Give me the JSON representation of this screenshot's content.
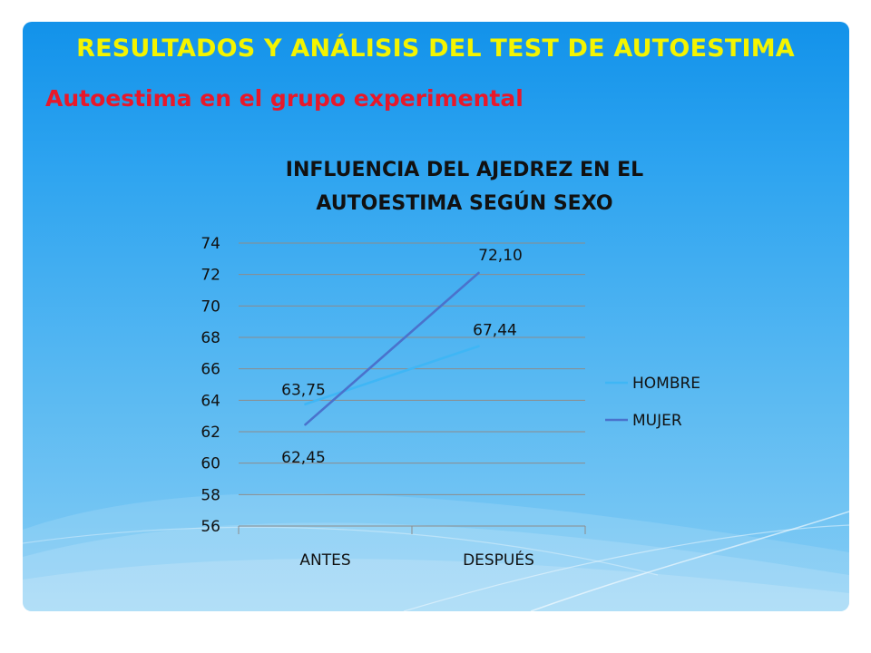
{
  "slide": {
    "title": "RESULTADOS Y ANÁLISIS DEL TEST DE AUTOESTIMA",
    "subtitle": "Autoestima en el grupo experimental"
  },
  "colors": {
    "title": "#f4f400",
    "subtitle": "#e8182a",
    "hombre": "#3fb6f5",
    "mujer": "#4a72cc",
    "grid": "#8c8c8c"
  },
  "chart_data": {
    "type": "line",
    "title_lines": [
      "INFLUENCIA DEL AJEDREZ EN EL",
      "AUTOESTIMA SEGÚN SEXO"
    ],
    "categories": [
      "ANTES",
      "DESPUÉS"
    ],
    "series": [
      {
        "name": "HOMBRE",
        "values": [
          63.75,
          67.44
        ],
        "labels": [
          "63,75",
          "67,44"
        ],
        "color": "#3fb6f5"
      },
      {
        "name": "MUJER",
        "values": [
          62.45,
          72.1
        ],
        "labels": [
          "62,45",
          "72,10"
        ],
        "color": "#4a72cc"
      }
    ],
    "ylim": [
      56,
      74
    ],
    "yticks": [
      56,
      58,
      60,
      62,
      64,
      66,
      68,
      70,
      72,
      74
    ],
    "grid": true,
    "legend": "right"
  }
}
